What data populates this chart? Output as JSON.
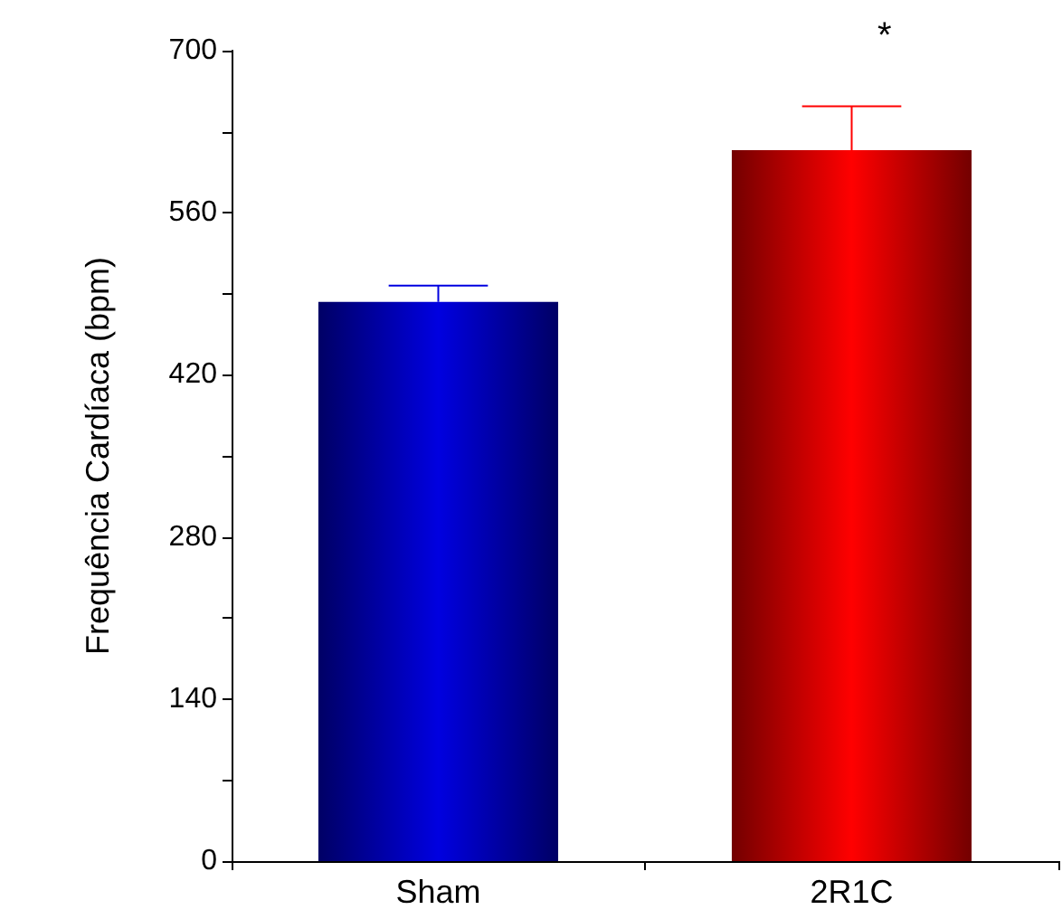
{
  "chart_data": {
    "type": "bar",
    "ylabel": "Frequência Cardíaca (bpm)",
    "categories": [
      "Sham",
      "2R1C"
    ],
    "series": [
      {
        "colors": [
          "#0000e0",
          "#ff0000"
        ],
        "values": [
          483,
          614
        ],
        "errors": [
          [
            483,
            497
          ],
          [
            614,
            652
          ]
        ]
      }
    ],
    "ylim": [
      0,
      700
    ],
    "yticks": [
      0,
      {
        "value": 70,
        "label": null
      },
      140,
      {
        "value": 210,
        "label": null
      },
      280,
      {
        "value": 350,
        "label": null
      },
      420,
      {
        "value": 490,
        "label": null
      },
      560,
      {
        "value": 630,
        "label": null
      },
      700
    ],
    "grid": false,
    "annotations": [
      "*"
    ]
  }
}
